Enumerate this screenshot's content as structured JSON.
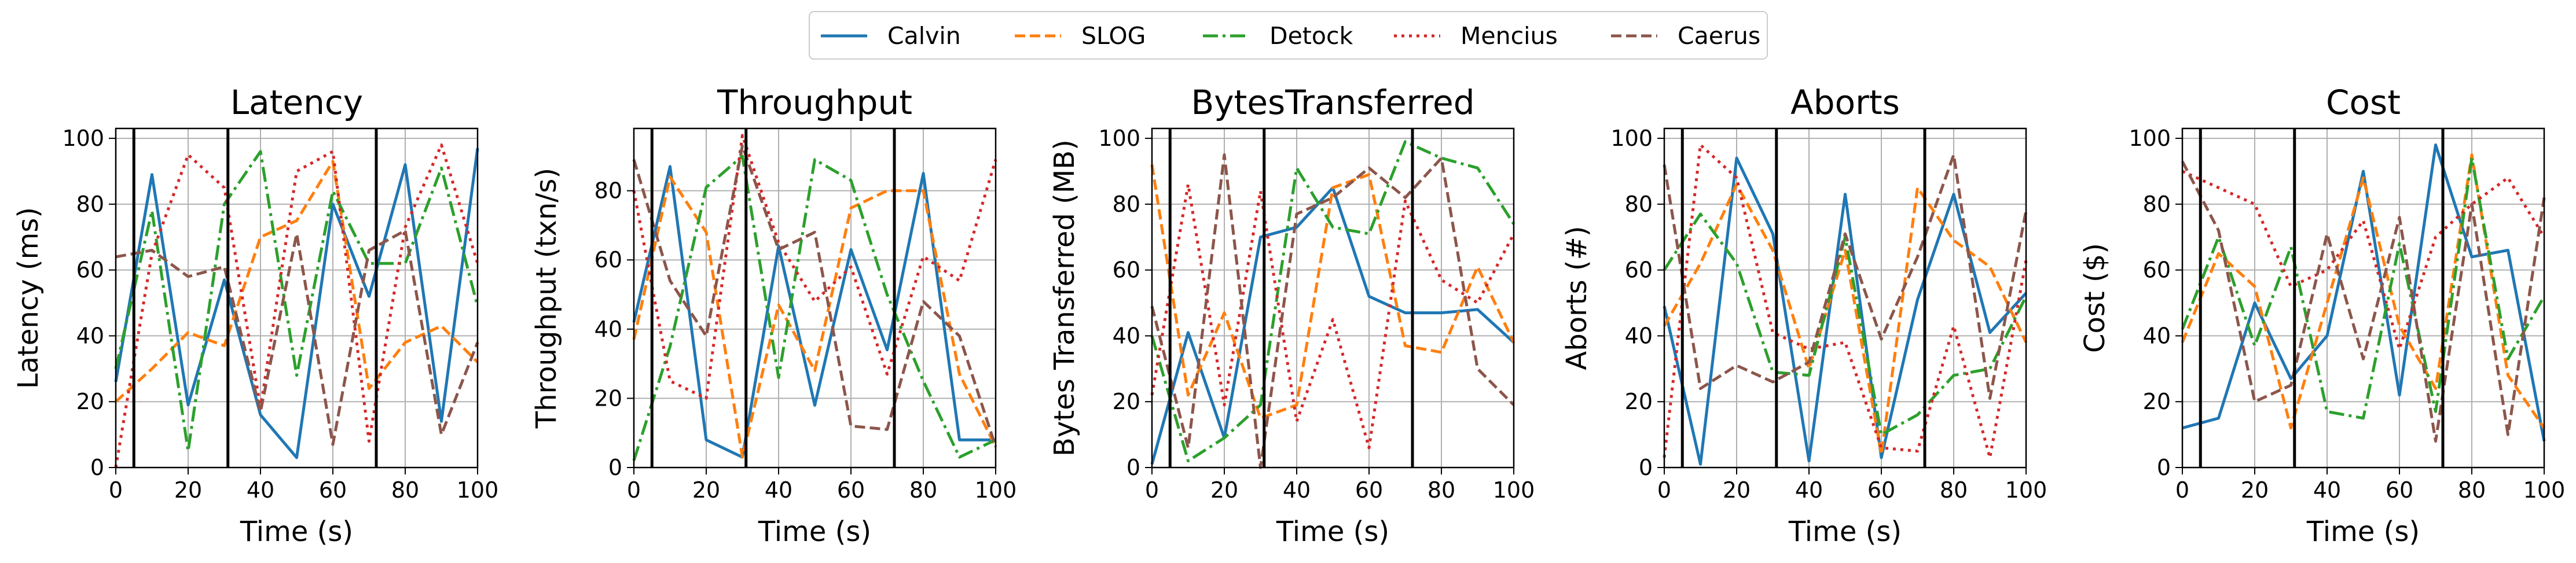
{
  "legend": [
    {
      "name": "Calvin",
      "color": "#1f77b4",
      "dash": "solid"
    },
    {
      "name": "SLOG",
      "color": "#ff7f0e",
      "dash": "dashed"
    },
    {
      "name": "Detock",
      "color": "#2ca02c",
      "dash": "dashdot"
    },
    {
      "name": "Mencius",
      "color": "#d62728",
      "dash": "dotted"
    },
    {
      "name": "Caerus",
      "color": "#8c564b",
      "dash": "dashed"
    }
  ],
  "chart_data": [
    {
      "type": "line",
      "title": "Latency",
      "xlabel": "Time (s)",
      "ylabel": "Latency (ms)",
      "xlim": [
        0,
        100
      ],
      "ylim": [
        0,
        103
      ],
      "xticks": [
        0,
        20,
        40,
        60,
        80,
        100
      ],
      "yticks": [
        0,
        20,
        40,
        60,
        80,
        100
      ],
      "grid": true,
      "vlines": [
        5,
        31,
        72
      ],
      "x": [
        0,
        10,
        20,
        30,
        40,
        50,
        60,
        70,
        80,
        90,
        100
      ],
      "series": [
        {
          "name": "Calvin",
          "values": [
            26,
            89,
            19,
            57,
            16,
            3,
            80,
            52,
            92,
            14,
            97
          ]
        },
        {
          "name": "SLOG",
          "values": [
            20,
            30,
            41,
            37,
            70,
            75,
            93,
            24,
            38,
            43,
            32
          ]
        },
        {
          "name": "Detock",
          "values": [
            30,
            78,
            5,
            80,
            96,
            28,
            84,
            62,
            62,
            91,
            49
          ]
        },
        {
          "name": "Mencius",
          "values": [
            0,
            65,
            95,
            85,
            18,
            90,
            96,
            8,
            73,
            98,
            62
          ]
        },
        {
          "name": "Caerus",
          "values": [
            64,
            66,
            58,
            61,
            17,
            71,
            7,
            66,
            72,
            10,
            38
          ]
        }
      ]
    },
    {
      "type": "line",
      "title": "Throughput",
      "xlabel": "Time (s)",
      "ylabel": "Throughput (txn/s)",
      "xlim": [
        0,
        100
      ],
      "ylim": [
        0,
        98
      ],
      "xticks": [
        0,
        20,
        40,
        60,
        80,
        100
      ],
      "yticks": [
        0,
        20,
        40,
        60,
        80
      ],
      "grid": true,
      "vlines": [
        5,
        31,
        72
      ],
      "x": [
        0,
        10,
        20,
        30,
        40,
        50,
        60,
        70,
        80,
        90,
        100
      ],
      "series": [
        {
          "name": "Calvin",
          "values": [
            42,
            87,
            8,
            3,
            64,
            18,
            63,
            34,
            85,
            8,
            8
          ]
        },
        {
          "name": "SLOG",
          "values": [
            37,
            84,
            68,
            3,
            47,
            28,
            75,
            80,
            80,
            27,
            6
          ]
        },
        {
          "name": "Detock",
          "values": [
            2,
            35,
            81,
            90,
            26,
            89,
            83,
            50,
            25,
            3,
            8
          ]
        },
        {
          "name": "Mencius",
          "values": [
            80,
            25,
            20,
            96,
            65,
            48,
            58,
            27,
            61,
            54,
            89
          ]
        },
        {
          "name": "Caerus",
          "values": [
            89,
            54,
            38,
            93,
            63,
            68,
            12,
            11,
            48,
            38,
            6
          ]
        }
      ]
    },
    {
      "type": "line",
      "title": "BytesTransferred",
      "xlabel": "Time (s)",
      "ylabel": "Bytes Transferred (MB)",
      "xlim": [
        0,
        100
      ],
      "ylim": [
        0,
        103
      ],
      "xticks": [
        0,
        20,
        40,
        60,
        80,
        100
      ],
      "yticks": [
        0,
        20,
        40,
        60,
        80,
        100
      ],
      "grid": true,
      "vlines": [
        5,
        31,
        72
      ],
      "x": [
        0,
        10,
        20,
        30,
        40,
        50,
        60,
        70,
        80,
        90,
        100
      ],
      "series": [
        {
          "name": "Calvin",
          "values": [
            1,
            41,
            9,
            70,
            73,
            85,
            52,
            47,
            47,
            48,
            38
          ]
        },
        {
          "name": "SLOG",
          "values": [
            92,
            22,
            47,
            15,
            19,
            85,
            89,
            37,
            35,
            61,
            38
          ]
        },
        {
          "name": "Detock",
          "values": [
            40,
            2,
            9,
            19,
            91,
            73,
            71,
            99,
            94,
            91,
            74
          ]
        },
        {
          "name": "Mencius",
          "values": [
            22,
            86,
            19,
            84,
            14,
            45,
            6,
            81,
            57,
            50,
            71
          ]
        },
        {
          "name": "Caerus",
          "values": [
            49,
            6,
            95,
            0,
            77,
            82,
            91,
            82,
            94,
            30,
            19
          ]
        }
      ]
    },
    {
      "type": "line",
      "title": "Aborts",
      "xlabel": "Time (s)",
      "ylabel": "Aborts (#)",
      "xlim": [
        0,
        100
      ],
      "ylim": [
        0,
        103
      ],
      "xticks": [
        0,
        20,
        40,
        60,
        80,
        100
      ],
      "yticks": [
        0,
        20,
        40,
        60,
        80,
        100
      ],
      "grid": true,
      "vlines": [
        5,
        31,
        72
      ],
      "x": [
        0,
        10,
        20,
        30,
        40,
        50,
        60,
        70,
        80,
        90,
        100
      ],
      "series": [
        {
          "name": "Calvin",
          "values": [
            49,
            1,
            94,
            71,
            2,
            83,
            3,
            51,
            83,
            41,
            53
          ]
        },
        {
          "name": "SLOG",
          "values": [
            43,
            62,
            86,
            66,
            30,
            66,
            4,
            85,
            69,
            61,
            38
          ]
        },
        {
          "name": "Detock",
          "values": [
            60,
            77,
            62,
            29,
            28,
            70,
            10,
            16,
            28,
            30,
            52
          ]
        },
        {
          "name": "Mencius",
          "values": [
            3,
            98,
            88,
            41,
            36,
            38,
            6,
            5,
            43,
            3,
            63
          ]
        },
        {
          "name": "Caerus",
          "values": [
            92,
            24,
            31,
            26,
            32,
            71,
            39,
            64,
            95,
            21,
            78
          ]
        }
      ]
    },
    {
      "type": "line",
      "title": "Cost",
      "xlabel": "Time (s)",
      "ylabel": "Cost ($)",
      "xlim": [
        0,
        100
      ],
      "ylim": [
        0,
        103
      ],
      "xticks": [
        0,
        20,
        40,
        60,
        80,
        100
      ],
      "yticks": [
        0,
        20,
        40,
        60,
        80,
        100
      ],
      "grid": true,
      "vlines": [
        5,
        31,
        72
      ],
      "x": [
        0,
        10,
        20,
        30,
        40,
        50,
        60,
        70,
        80,
        90,
        100
      ],
      "series": [
        {
          "name": "Calvin",
          "values": [
            12,
            15,
            50,
            27,
            40,
            90,
            22,
            98,
            64,
            66,
            8
          ]
        },
        {
          "name": "SLOG",
          "values": [
            38,
            65,
            55,
            12,
            50,
            88,
            43,
            24,
            95,
            28,
            12
          ]
        },
        {
          "name": "Detock",
          "values": [
            42,
            70,
            37,
            67,
            17,
            15,
            68,
            17,
            94,
            33,
            52
          ]
        },
        {
          "name": "Mencius",
          "values": [
            90,
            85,
            80,
            55,
            60,
            75,
            36,
            70,
            80,
            88,
            70
          ]
        },
        {
          "name": "Caerus",
          "values": [
            93,
            72,
            20,
            25,
            71,
            33,
            76,
            8,
            80,
            10,
            82
          ]
        }
      ]
    }
  ]
}
